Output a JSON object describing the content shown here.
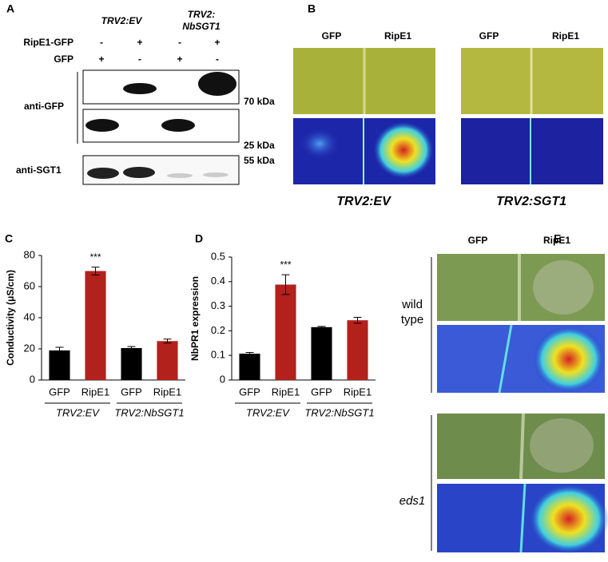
{
  "panel_a": {
    "label": "A",
    "column_headers": [
      "TRV2:EV",
      "TRV2:",
      "NbSGT1"
    ],
    "row_labels": [
      "RipE1-GFP",
      "GFP"
    ],
    "signs": [
      [
        "-",
        "+",
        "-",
        "+"
      ],
      [
        "+",
        "-",
        "+",
        "-"
      ]
    ],
    "antibodies": [
      "anti-GFP",
      "anti-SGT1"
    ],
    "markers": [
      "70 kDa",
      "25 kDa",
      "55 kDa"
    ]
  },
  "panel_b": {
    "label": "B",
    "lanes": [
      "GFP",
      "RipE1",
      "GFP",
      "RipE1"
    ],
    "captions": [
      "TRV2:EV",
      "TRV2:SGT1"
    ]
  },
  "chart_data": [
    {
      "type": "bar",
      "panel_label": "C",
      "ylabel": "Conductivity (μS/cm)",
      "categories": [
        "GFP",
        "RipE1",
        "GFP",
        "RipE1"
      ],
      "groups": [
        "TRV2:EV",
        "TRV2:NbSGT1"
      ],
      "colors": [
        "#000000",
        "#b3211d",
        "#000000",
        "#b3211d"
      ],
      "values": [
        19,
        70,
        20.5,
        25
      ],
      "errors": [
        2,
        2.5,
        1,
        1.3
      ],
      "significance": [
        null,
        "***",
        null,
        null
      ],
      "ylim": [
        0,
        80
      ],
      "yticks": [
        0,
        20,
        40,
        60,
        80
      ]
    },
    {
      "type": "bar",
      "panel_label": "D",
      "ylabel": "NbPR1 expression",
      "categories": [
        "GFP",
        "RipE1",
        "GFP",
        "RipE1"
      ],
      "groups": [
        "TRV2:EV",
        "TRV2:NbSGT1"
      ],
      "colors": [
        "#000000",
        "#b3211d",
        "#000000",
        "#b3211d"
      ],
      "values": [
        0.107,
        0.388,
        0.215,
        0.243
      ],
      "errors": [
        0.005,
        0.04,
        0.003,
        0.012
      ],
      "significance": [
        null,
        "***",
        null,
        null
      ],
      "ylim": [
        0,
        0.5
      ],
      "yticks": [
        0,
        0.1,
        0.2,
        0.3,
        0.4,
        0.5
      ]
    }
  ],
  "panel_e": {
    "label": "E",
    "lanes": [
      "GFP",
      "RipE1"
    ],
    "row_labels": [
      "wild",
      "type",
      "eds1"
    ]
  }
}
